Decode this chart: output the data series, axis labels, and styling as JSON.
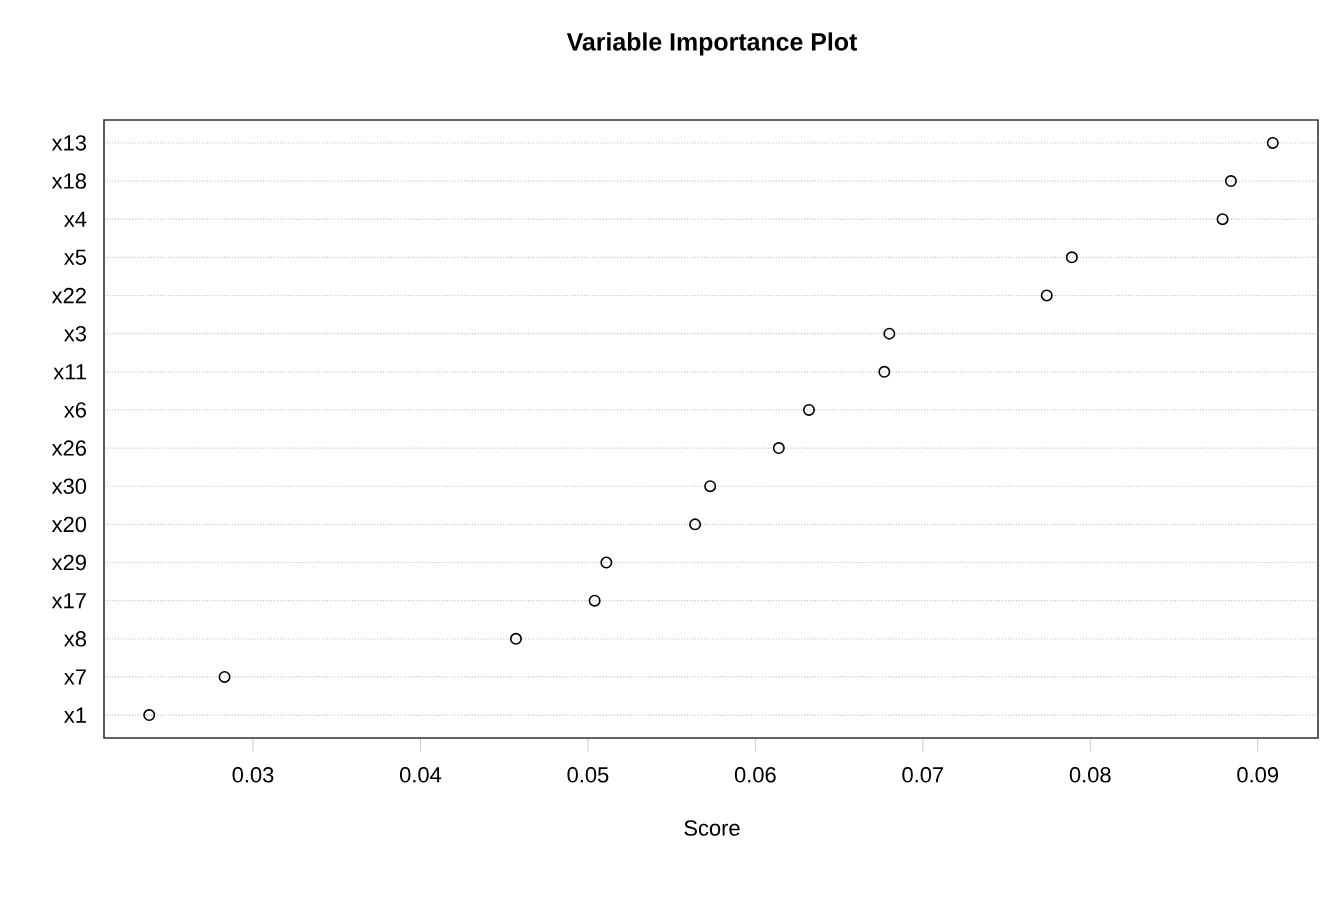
{
  "chart_data": {
    "type": "scatter",
    "title": "Variable Importance Plot",
    "xlabel": "Score",
    "orientation": "horizontal",
    "categories": [
      "x13",
      "x18",
      "x4",
      "x5",
      "x22",
      "x3",
      "x11",
      "x6",
      "x26",
      "x30",
      "x20",
      "x29",
      "x17",
      "x8",
      "x7",
      "x1"
    ],
    "values": [
      0.0909,
      0.0884,
      0.0879,
      0.0789,
      0.0774,
      0.068,
      0.0677,
      0.0632,
      0.0614,
      0.0573,
      0.0564,
      0.0511,
      0.0504,
      0.0457,
      0.0283,
      0.0238
    ],
    "color": "#000000",
    "xlim": [
      0.0211,
      0.0936
    ],
    "xticks": [
      0.03,
      0.04,
      0.05,
      0.06,
      0.07,
      0.08,
      0.09
    ],
    "grid": "y",
    "marker": "circle"
  }
}
